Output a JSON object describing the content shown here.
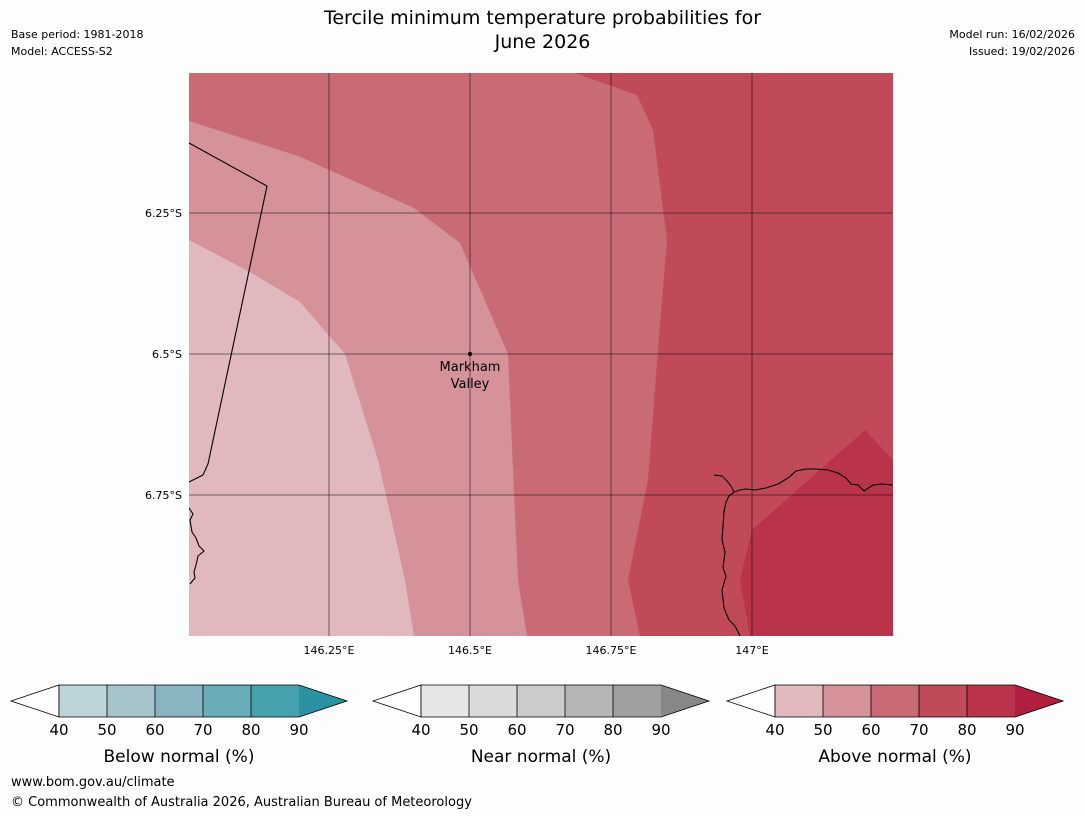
{
  "header": {
    "title_line1": "Tercile minimum temperature probabilities for",
    "title_line2": "June 2026",
    "base_period": "Base period: 1981-2018",
    "model": "Model: ACCESS-S2",
    "model_run": "Model run: 16/02/2026",
    "issued": "Issued: 19/02/2026"
  },
  "map": {
    "lat_labels": [
      "6.25°S",
      "6.5°S",
      "6.75°S"
    ],
    "lon_labels": [
      "146.25°E",
      "146.5°E",
      "146.75°E",
      "147°E"
    ],
    "location": {
      "name_line1": "Markham",
      "name_line2": "Valley",
      "lon": 146.5,
      "lat": -6.5
    },
    "colors": {
      "above_40": "#e0b8bd",
      "above_50": "#d59299",
      "above_60": "#c96b75",
      "above_70": "#c04a58",
      "above_80": "#b9344a"
    }
  },
  "colorbars": [
    {
      "label": "Below normal (%)",
      "ticks": [
        "40",
        "50",
        "60",
        "70",
        "80",
        "90"
      ],
      "colors": [
        "#bdd4da",
        "#a5c5cb",
        "#88b5c0",
        "#6aadb9",
        "#47a0ae",
        "#2b92a3"
      ]
    },
    {
      "label": "Near normal (%)",
      "ticks": [
        "40",
        "50",
        "60",
        "70",
        "80",
        "90"
      ],
      "colors": [
        "#e6e6e6",
        "#dadada",
        "#cbcbcb",
        "#b6b6b6",
        "#a0a0a0",
        "#878787"
      ]
    },
    {
      "label": "Above normal (%)",
      "ticks": [
        "40",
        "50",
        "60",
        "70",
        "80",
        "90"
      ],
      "colors": [
        "#e0b8bd",
        "#d59299",
        "#c96b75",
        "#c04a58",
        "#b9344a",
        "#b21f3e"
      ]
    }
  ],
  "footer": {
    "url": "www.bom.gov.au/climate",
    "copyright": "© Commonwealth of Australia 2026, Australian Bureau of Meteorology"
  }
}
